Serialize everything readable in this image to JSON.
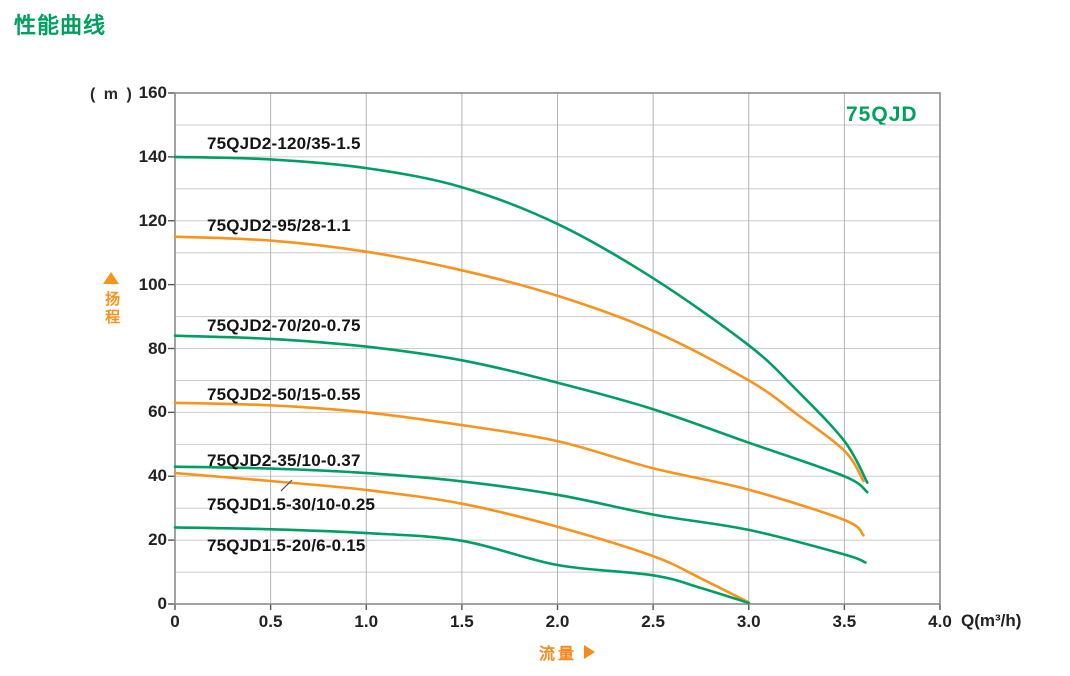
{
  "page": {
    "title": "性能曲线"
  },
  "chart_data": {
    "type": "line",
    "title": "性能曲线",
    "model_label": "75QJD",
    "xlabel": "Q(m³/h)",
    "x_axis_name": "流量",
    "y_axis_name": "扬程",
    "y_unit": "( m )",
    "xlim": [
      0,
      4.0
    ],
    "ylim": [
      0,
      160
    ],
    "xticks": [
      "0",
      "0.5",
      "1.0",
      "1.5",
      "2.0",
      "2.5",
      "3.0",
      "3.5",
      "4.0"
    ],
    "yticks": [
      "0",
      "20",
      "40",
      "60",
      "80",
      "100",
      "120",
      "140",
      "160"
    ],
    "grid": {
      "on": true,
      "x_step": 0.5,
      "y_step": 10
    },
    "colors": {
      "green": "#009e63",
      "orange": "#f7941e",
      "grid_h": "#cbcbcb",
      "grid_v": "#b3b3b3",
      "border": "#8c8c8c",
      "tick": "#555555",
      "leader": "#555555"
    },
    "icons": {
      "head_axis_icon": "triangle-up",
      "flow_axis_icon": "triangle-right"
    },
    "series": [
      {
        "name": "75QJD2-120/35-1.5",
        "color_key": "green",
        "points": [
          [
            0,
            140
          ],
          [
            0.5,
            139.2
          ],
          [
            1.0,
            136.5
          ],
          [
            1.5,
            130.5
          ],
          [
            2.0,
            119
          ],
          [
            2.5,
            102
          ],
          [
            3.0,
            81
          ],
          [
            3.25,
            67
          ],
          [
            3.5,
            51
          ],
          [
            3.62,
            38
          ]
        ],
        "label_pos": {
          "q": 0.167,
          "h": 147.2
        }
      },
      {
        "name": "75QJD2-95/28-1.1",
        "color_key": "orange",
        "points": [
          [
            0,
            115
          ],
          [
            0.5,
            113.8
          ],
          [
            1.0,
            110.3
          ],
          [
            1.5,
            104.5
          ],
          [
            2.0,
            96.5
          ],
          [
            2.5,
            85.5
          ],
          [
            3.0,
            70
          ],
          [
            3.25,
            59.5
          ],
          [
            3.5,
            48
          ],
          [
            3.6,
            38.5
          ]
        ],
        "label_pos": {
          "q": 0.167,
          "h": 121.5
        }
      },
      {
        "name": "75QJD2-70/20-0.75",
        "color_key": "green",
        "points": [
          [
            0,
            84
          ],
          [
            0.5,
            83
          ],
          [
            1.0,
            80.6
          ],
          [
            1.5,
            76.3
          ],
          [
            2.0,
            69.3
          ],
          [
            2.5,
            61
          ],
          [
            3.0,
            50.5
          ],
          [
            3.5,
            40
          ],
          [
            3.62,
            35
          ]
        ],
        "label_pos": {
          "q": 0.167,
          "h": 90.2
        }
      },
      {
        "name": "75QJD2-50/15-0.55",
        "color_key": "orange",
        "points": [
          [
            0,
            63
          ],
          [
            0.5,
            62.2
          ],
          [
            1.0,
            60
          ],
          [
            1.5,
            56
          ],
          [
            2.0,
            51
          ],
          [
            2.5,
            42.5
          ],
          [
            3.0,
            35.8
          ],
          [
            3.5,
            26.3
          ],
          [
            3.6,
            21.5
          ]
        ],
        "label_pos": {
          "q": 0.167,
          "h": 68.6
        }
      },
      {
        "name": "75QJD2-35/10-0.37",
        "color_key": "green",
        "points": [
          [
            0,
            43
          ],
          [
            0.5,
            42.4
          ],
          [
            1.0,
            41
          ],
          [
            1.5,
            38.4
          ],
          [
            2.0,
            34.2
          ],
          [
            2.5,
            28
          ],
          [
            3.0,
            23.2
          ],
          [
            3.5,
            15.5
          ],
          [
            3.61,
            13
          ]
        ],
        "label_pos": {
          "q": 0.167,
          "h": 47.9
        }
      },
      {
        "name": "75QJD1.5-30/10-0.25",
        "color_key": "orange",
        "points": [
          [
            0,
            41
          ],
          [
            0.5,
            38.5
          ],
          [
            1.0,
            35.7
          ],
          [
            1.5,
            31.4
          ],
          [
            2.0,
            24.2
          ],
          [
            2.5,
            15
          ],
          [
            2.75,
            8
          ],
          [
            3.0,
            0.5
          ]
        ],
        "label_pos": {
          "q": 0.167,
          "h": 34.1
        }
      },
      {
        "name": "75QJD1.5-20/6-0.15",
        "color_key": "green",
        "points": [
          [
            0,
            24
          ],
          [
            0.5,
            23.4
          ],
          [
            1.0,
            22.2
          ],
          [
            1.5,
            19.8
          ],
          [
            2.0,
            12.2
          ],
          [
            2.5,
            9
          ],
          [
            2.75,
            5
          ],
          [
            3.0,
            0.3
          ]
        ],
        "label_pos": {
          "q": 0.167,
          "h": 21.3
        }
      }
    ],
    "leader_line": {
      "from": {
        "q": 0.554,
        "h": 35.4
      },
      "to": {
        "q": 0.612,
        "h": 38.8
      }
    }
  }
}
